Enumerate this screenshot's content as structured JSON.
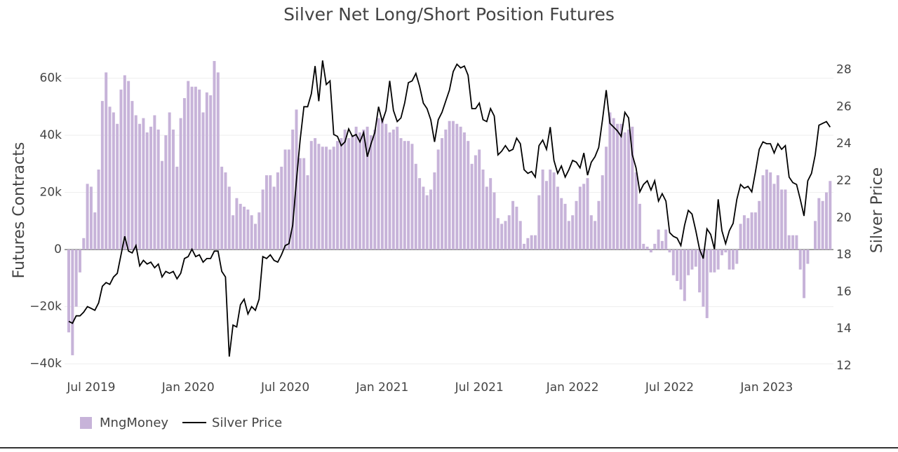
{
  "chart_data": {
    "type": "bar",
    "title": "Silver Net Long/Short Position Futures",
    "y_axis_label": "Futures Contracts",
    "y2_axis_label": "Silver Price",
    "legend": "bottom-left",
    "grid": true,
    "ylim": [
      -40700,
      66500
    ],
    "yticks": [
      {
        "value": -40000,
        "label": "−40k"
      },
      {
        "value": -20000,
        "label": "−20k"
      },
      0,
      {
        "value": 20000,
        "label": "20k"
      },
      {
        "value": 40000,
        "label": "40k"
      },
      {
        "value": 60000,
        "label": "60k"
      }
    ],
    "y2lim": [
      12,
      28.55
    ],
    "y2ticks": [
      12,
      14,
      16,
      18,
      20,
      22,
      24,
      26,
      28
    ],
    "categories": [
      null,
      null,
      null,
      null,
      null,
      null,
      "Jul 2019",
      null,
      null,
      null,
      null,
      null,
      null,
      null,
      null,
      null,
      null,
      null,
      null,
      null,
      null,
      null,
      null,
      null,
      null,
      null,
      null,
      null,
      null,
      null,
      null,
      null,
      "Jan 2020",
      null,
      null,
      null,
      null,
      null,
      null,
      null,
      null,
      null,
      null,
      null,
      null,
      null,
      null,
      null,
      null,
      null,
      null,
      null,
      null,
      null,
      null,
      null,
      null,
      null,
      "Jul 2020",
      null,
      null,
      null,
      null,
      null,
      null,
      null,
      null,
      null,
      null,
      null,
      null,
      null,
      null,
      null,
      null,
      null,
      null,
      null,
      null,
      null,
      null,
      null,
      null,
      null,
      "Jan 2021",
      null,
      null,
      null,
      null,
      null,
      null,
      null,
      null,
      null,
      null,
      null,
      null,
      null,
      null,
      null,
      null,
      null,
      null,
      null,
      null,
      null,
      null,
      null,
      null,
      null,
      "Jul 2021",
      null,
      null,
      null,
      null,
      null,
      null,
      null,
      null,
      null,
      null,
      null,
      null,
      null,
      null,
      null,
      null,
      null,
      null,
      null,
      null,
      null,
      null,
      null,
      null,
      "Jan 2022",
      null,
      null,
      null,
      null,
      null,
      null,
      null,
      null,
      null,
      null,
      null,
      null,
      null,
      null,
      null,
      null,
      null,
      null,
      null,
      null,
      null,
      null,
      null,
      null,
      null,
      "Jul 2022",
      null,
      null,
      null,
      null,
      null,
      null,
      null,
      null,
      null,
      null,
      null,
      null,
      null,
      null,
      null,
      null,
      null,
      null,
      null,
      null,
      null,
      null,
      null,
      null,
      null,
      "Jan 2023",
      null,
      null,
      null,
      null,
      null,
      null,
      null,
      null,
      null,
      null,
      null,
      null,
      null,
      null,
      null,
      null,
      null
    ],
    "series": [
      {
        "name": "MngMoney",
        "type": "bar",
        "color": "#c7b3d9",
        "values": [
          -29000,
          -37000,
          -20000,
          -8000,
          4000,
          23000,
          22000,
          13000,
          28000,
          52000,
          62000,
          50000,
          48000,
          44000,
          56000,
          61000,
          59000,
          52000,
          47000,
          44000,
          46000,
          41000,
          43000,
          47000,
          42000,
          31000,
          40000,
          48000,
          42000,
          29000,
          46000,
          53000,
          59000,
          57000,
          57000,
          56000,
          48000,
          55000,
          54000,
          66000,
          62000,
          29000,
          27000,
          22000,
          12000,
          18000,
          16000,
          15000,
          14000,
          12000,
          9000,
          13000,
          21000,
          26000,
          26000,
          22000,
          27000,
          29000,
          35000,
          35000,
          42000,
          49000,
          32000,
          32000,
          26000,
          38000,
          39000,
          37000,
          36000,
          36000,
          35000,
          36000,
          38000,
          39000,
          42000,
          39000,
          40000,
          43000,
          41000,
          42000,
          43000,
          40000,
          42000,
          46000,
          46000,
          44000,
          41000,
          42000,
          43000,
          39000,
          38000,
          38000,
          37000,
          30000,
          25000,
          22000,
          19000,
          21000,
          27000,
          35000,
          39000,
          42000,
          45000,
          45000,
          44000,
          43000,
          41000,
          38000,
          30000,
          33000,
          35000,
          28000,
          22000,
          25000,
          20000,
          11000,
          9000,
          10000,
          12000,
          17000,
          15000,
          10000,
          2000,
          4000,
          5000,
          5000,
          19000,
          28000,
          24000,
          28000,
          27000,
          22000,
          18000,
          16000,
          10000,
          12000,
          17000,
          22000,
          23000,
          25000,
          12000,
          10000,
          17000,
          26000,
          36000,
          48000,
          46000,
          44000,
          44000,
          41000,
          42000,
          43000,
          27000,
          16000,
          2000,
          1000,
          -1000,
          2000,
          7000,
          3000,
          7000,
          -1000,
          -9000,
          -11000,
          -14000,
          -18000,
          -9000,
          -7000,
          -6000,
          -15000,
          -20000,
          -24000,
          -8000,
          -8000,
          -7000,
          -2000,
          -1000,
          -7000,
          -7000,
          -5000,
          9000,
          12000,
          11000,
          13000,
          13000,
          17000,
          26000,
          28000,
          27000,
          23000,
          26000,
          21000,
          21000,
          5000,
          5000,
          5000,
          -7000,
          -17000,
          -5000,
          0,
          10000,
          18000,
          17000,
          20000,
          24000
        ]
      },
      {
        "name": "Silver Price",
        "type": "line",
        "axis": "y2",
        "color": "#000000",
        "values": [
          14.4,
          14.3,
          14.7,
          14.7,
          14.9,
          15.2,
          15.1,
          15.0,
          15.4,
          16.3,
          16.5,
          16.4,
          16.8,
          17.0,
          18.0,
          19.0,
          18.2,
          18.1,
          18.5,
          17.4,
          17.7,
          17.5,
          17.6,
          17.3,
          17.5,
          16.8,
          17.1,
          17.0,
          17.1,
          16.7,
          17.0,
          17.8,
          17.9,
          18.3,
          17.9,
          18.0,
          17.6,
          17.8,
          17.8,
          18.2,
          18.2,
          17.1,
          16.8,
          12.5,
          14.2,
          14.1,
          15.3,
          15.6,
          14.8,
          15.2,
          15.0,
          15.6,
          17.9,
          17.8,
          18.0,
          17.7,
          17.6,
          18.0,
          18.5,
          18.6,
          19.6,
          22.0,
          24.2,
          26.0,
          26.0,
          26.7,
          28.2,
          26.3,
          28.5,
          27.2,
          27.4,
          24.5,
          24.4,
          23.9,
          24.1,
          24.8,
          24.4,
          24.5,
          24.1,
          24.6,
          23.3,
          24.0,
          24.6,
          26.0,
          25.2,
          25.8,
          27.4,
          25.8,
          25.2,
          25.4,
          26.2,
          27.3,
          27.4,
          27.8,
          27.1,
          26.2,
          25.9,
          25.3,
          24.1,
          25.3,
          25.7,
          26.3,
          26.9,
          27.9,
          28.3,
          28.1,
          28.2,
          27.7,
          25.9,
          25.9,
          26.2,
          25.3,
          25.2,
          25.9,
          25.5,
          23.4,
          23.6,
          23.9,
          23.6,
          23.7,
          24.3,
          24.0,
          22.6,
          22.4,
          22.5,
          22.2,
          23.9,
          24.2,
          23.7,
          24.9,
          23.1,
          22.4,
          22.8,
          22.2,
          22.6,
          23.1,
          23.0,
          22.7,
          23.5,
          22.3,
          23.0,
          23.3,
          23.8,
          25.3,
          26.9,
          25.1,
          24.9,
          24.7,
          24.4,
          25.7,
          25.4,
          23.4,
          22.7,
          21.4,
          21.8,
          22.0,
          21.5,
          22.0,
          20.9,
          21.3,
          20.9,
          19.2,
          19.0,
          18.9,
          18.5,
          19.6,
          20.4,
          20.2,
          19.3,
          18.3,
          17.8,
          19.4,
          19.1,
          18.3,
          21.0,
          19.3,
          18.6,
          19.3,
          19.7,
          21.0,
          21.8,
          21.6,
          21.7,
          21.4,
          22.5,
          23.7,
          24.1,
          24.0,
          24.0,
          23.5,
          24.0,
          23.7,
          23.9,
          22.2,
          21.9,
          21.8,
          21.0,
          20.1,
          22.0,
          22.4,
          23.4,
          25.0,
          25.1,
          25.2,
          24.9
        ]
      }
    ]
  }
}
